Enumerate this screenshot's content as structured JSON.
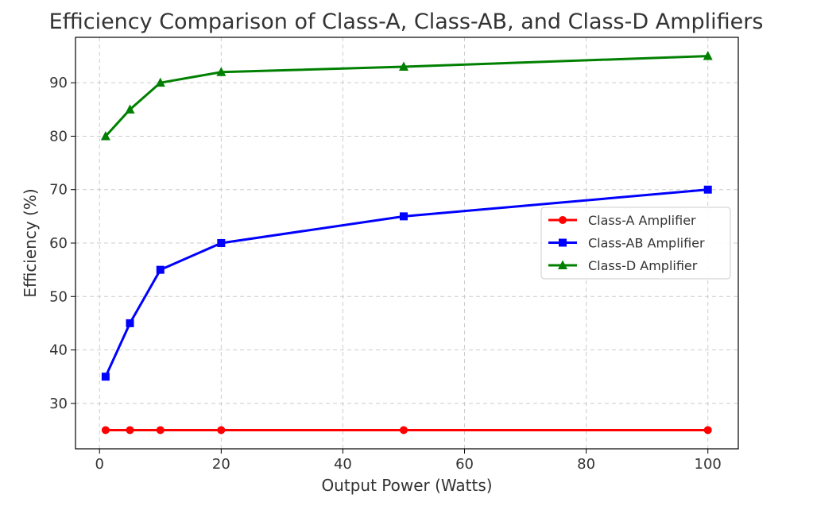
{
  "chart_data": {
    "type": "line",
    "title": "Efficiency Comparison of Class-A, Class-AB, and Class-D Amplifiers",
    "xlabel": "Output Power (Watts)",
    "ylabel": "Efficiency (%)",
    "xlim": [
      -3.95,
      105
    ],
    "ylim": [
      21.5,
      98.5
    ],
    "xticks": [
      0,
      20,
      40,
      60,
      80,
      100
    ],
    "yticks": [
      30,
      40,
      50,
      60,
      70,
      80,
      90
    ],
    "x": [
      1,
      5,
      10,
      20,
      50,
      100
    ],
    "grid": true,
    "legend_position": "center-right",
    "series": [
      {
        "name": "Class-A Amplifier",
        "values": [
          25,
          25,
          25,
          25,
          25,
          25
        ],
        "color": "#ff0000",
        "marker": "circle"
      },
      {
        "name": "Class-AB Amplifier",
        "values": [
          35,
          45,
          55,
          60,
          65,
          70
        ],
        "color": "#0000ff",
        "marker": "square"
      },
      {
        "name": "Class-D Amplifier",
        "values": [
          80,
          85,
          90,
          92,
          93,
          95
        ],
        "color": "#008000",
        "marker": "triangle"
      }
    ]
  }
}
